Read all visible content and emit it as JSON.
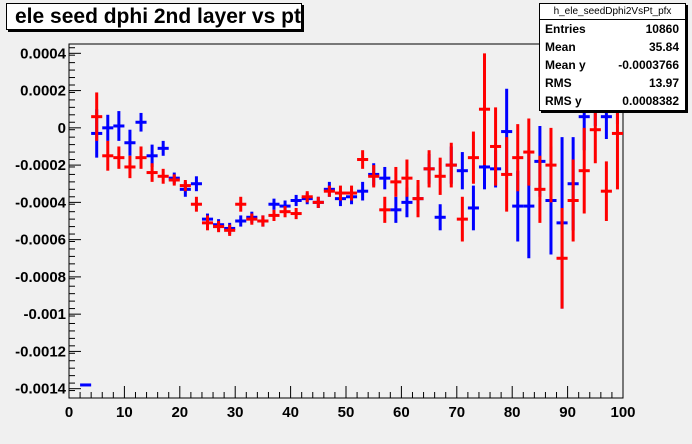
{
  "title": "ele seed dphi 2nd layer vs pt",
  "stats": {
    "name": "h_ele_seedDphi2VsPt_pfx",
    "rows": [
      {
        "key": "Entries",
        "value": "10860"
      },
      {
        "key": "Mean",
        "value": "35.84"
      },
      {
        "key": "Mean y",
        "value": "-0.0003766"
      },
      {
        "key": "RMS",
        "value": "13.97"
      },
      {
        "key": "RMS y",
        "value": "0.0008382"
      }
    ]
  },
  "colors": {
    "background": "#f0f0f0",
    "frame": "#000000",
    "blue_series": "#0000ff",
    "red_series": "#ff0000"
  },
  "chart_data": {
    "type": "scatter",
    "title": "ele seed dphi 2nd layer vs pt",
    "xlabel": "",
    "ylabel": "",
    "xlim": [
      0,
      100
    ],
    "ylim": [
      -0.00145,
      0.00045
    ],
    "xticks": [
      0,
      10,
      20,
      30,
      40,
      50,
      60,
      70,
      80,
      90,
      100
    ],
    "yticks": [
      0.0004,
      0.0002,
      0,
      -0.0002,
      -0.0004,
      -0.0006,
      -0.0008,
      -0.001,
      -0.0012,
      -0.0014
    ],
    "ytick_labels": [
      "0.0004",
      "0.0002",
      "0",
      "-0.0002",
      "-0.0004",
      "-0.0006",
      "-0.0008",
      "-0.001",
      "-0.0012",
      "-0.0014"
    ],
    "grid": false,
    "series": [
      {
        "color": "#0000ff",
        "bin_width": 2,
        "points": [
          {
            "x": 3,
            "y": -0.00138,
            "err": 0
          },
          {
            "x": 5,
            "y": -3e-05,
            "err": 0.00013
          },
          {
            "x": 7,
            "y": 0.0,
            "err": 7e-05
          },
          {
            "x": 9,
            "y": 1e-05,
            "err": 8e-05
          },
          {
            "x": 11,
            "y": -8e-05,
            "err": 7e-05
          },
          {
            "x": 13,
            "y": 3e-05,
            "err": 5e-05
          },
          {
            "x": 15,
            "y": -0.00015,
            "err": 6e-05
          },
          {
            "x": 17,
            "y": -0.00011,
            "err": 4e-05
          },
          {
            "x": 19,
            "y": -0.00027,
            "err": 3e-05
          },
          {
            "x": 21,
            "y": -0.00033,
            "err": 4e-05
          },
          {
            "x": 23,
            "y": -0.0003,
            "err": 4e-05
          },
          {
            "x": 25,
            "y": -0.00049,
            "err": 3e-05
          },
          {
            "x": 27,
            "y": -0.00052,
            "err": 3e-05
          },
          {
            "x": 29,
            "y": -0.00054,
            "err": 3e-05
          },
          {
            "x": 31,
            "y": -0.0005,
            "err": 3e-05
          },
          {
            "x": 33,
            "y": -0.00048,
            "err": 3e-05
          },
          {
            "x": 35,
            "y": -0.0005,
            "err": 3e-05
          },
          {
            "x": 37,
            "y": -0.00041,
            "err": 3e-05
          },
          {
            "x": 39,
            "y": -0.00042,
            "err": 3e-05
          },
          {
            "x": 41,
            "y": -0.00039,
            "err": 3e-05
          },
          {
            "x": 43,
            "y": -0.00038,
            "err": 3e-05
          },
          {
            "x": 45,
            "y": -0.0004,
            "err": 3e-05
          },
          {
            "x": 47,
            "y": -0.00033,
            "err": 4e-05
          },
          {
            "x": 49,
            "y": -0.00038,
            "err": 4e-05
          },
          {
            "x": 51,
            "y": -0.00037,
            "err": 4e-05
          },
          {
            "x": 53,
            "y": -0.00034,
            "err": 5e-05
          },
          {
            "x": 55,
            "y": -0.00025,
            "err": 6e-05
          },
          {
            "x": 57,
            "y": -0.00027,
            "err": 6e-05
          },
          {
            "x": 59,
            "y": -0.00044,
            "err": 7e-05
          },
          {
            "x": 61,
            "y": -0.0004,
            "err": 8e-05
          },
          {
            "x": 63,
            "y": -0.00038,
            "err": 7e-05
          },
          {
            "x": 65,
            "y": -0.00022,
            "err": 8e-05
          },
          {
            "x": 67,
            "y": -0.00048,
            "err": 7e-05
          },
          {
            "x": 69,
            "y": -0.0002,
            "err": 0.0001
          },
          {
            "x": 71,
            "y": -0.00023,
            "err": 0.0001
          },
          {
            "x": 73,
            "y": -0.00043,
            "err": 0.00012
          },
          {
            "x": 75,
            "y": -0.00021,
            "err": 0.00012
          },
          {
            "x": 77,
            "y": -0.00022,
            "err": 0.0001
          },
          {
            "x": 79,
            "y": -2e-05,
            "err": 0.00023
          },
          {
            "x": 81,
            "y": -0.00042,
            "err": 0.00019
          },
          {
            "x": 83,
            "y": -0.00042,
            "err": 0.00028
          },
          {
            "x": 85,
            "y": -0.00018,
            "err": 0.00019
          },
          {
            "x": 87,
            "y": -0.00039,
            "err": 0.00029
          },
          {
            "x": 89,
            "y": -0.00051,
            "err": 0.00046
          },
          {
            "x": 91,
            "y": -0.0003,
            "err": 0.00025
          },
          {
            "x": 93,
            "y": 6e-05,
            "err": 0.00018
          },
          {
            "x": 95,
            "y": 0.0001,
            "err": 9e-05
          },
          {
            "x": 97,
            "y": 6e-05,
            "err": 0.00012
          },
          {
            "x": 99,
            "y": 0.00022,
            "err": 0.0002
          }
        ]
      },
      {
        "color": "#ff0000",
        "bin_width": 2,
        "points": [
          {
            "x": 5,
            "y": 6e-05,
            "err": 0.00013
          },
          {
            "x": 7,
            "y": -0.00015,
            "err": 8e-05
          },
          {
            "x": 9,
            "y": -0.00016,
            "err": 6e-05
          },
          {
            "x": 11,
            "y": -0.00021,
            "err": 6e-05
          },
          {
            "x": 13,
            "y": -0.00016,
            "err": 6e-05
          },
          {
            "x": 15,
            "y": -0.00024,
            "err": 5e-05
          },
          {
            "x": 17,
            "y": -0.00026,
            "err": 4e-05
          },
          {
            "x": 19,
            "y": -0.00028,
            "err": 3e-05
          },
          {
            "x": 21,
            "y": -0.00031,
            "err": 3e-05
          },
          {
            "x": 23,
            "y": -0.00041,
            "err": 4e-05
          },
          {
            "x": 25,
            "y": -0.00051,
            "err": 4e-05
          },
          {
            "x": 27,
            "y": -0.00053,
            "err": 3e-05
          },
          {
            "x": 29,
            "y": -0.00055,
            "err": 3e-05
          },
          {
            "x": 31,
            "y": -0.00041,
            "err": 4e-05
          },
          {
            "x": 33,
            "y": -0.00049,
            "err": 3e-05
          },
          {
            "x": 35,
            "y": -0.0005,
            "err": 3e-05
          },
          {
            "x": 37,
            "y": -0.00047,
            "err": 3e-05
          },
          {
            "x": 39,
            "y": -0.00045,
            "err": 3e-05
          },
          {
            "x": 41,
            "y": -0.00046,
            "err": 3e-05
          },
          {
            "x": 43,
            "y": -0.00037,
            "err": 3e-05
          },
          {
            "x": 45,
            "y": -0.0004,
            "err": 3e-05
          },
          {
            "x": 47,
            "y": -0.00034,
            "err": 3e-05
          },
          {
            "x": 49,
            "y": -0.00035,
            "err": 4e-05
          },
          {
            "x": 51,
            "y": -0.00035,
            "err": 4e-05
          },
          {
            "x": 53,
            "y": -0.00017,
            "err": 5e-05
          },
          {
            "x": 55,
            "y": -0.00026,
            "err": 6e-05
          },
          {
            "x": 57,
            "y": -0.00044,
            "err": 7e-05
          },
          {
            "x": 59,
            "y": -0.00029,
            "err": 8e-05
          },
          {
            "x": 61,
            "y": -0.00027,
            "err": 0.0001
          },
          {
            "x": 63,
            "y": -0.00038,
            "err": 0.0001
          },
          {
            "x": 65,
            "y": -0.00022,
            "err": 0.0001
          },
          {
            "x": 67,
            "y": -0.00026,
            "err": 0.0001
          },
          {
            "x": 69,
            "y": -0.0002,
            "err": 0.00012
          },
          {
            "x": 71,
            "y": -0.00049,
            "err": 0.00012
          },
          {
            "x": 73,
            "y": -0.00016,
            "err": 0.00014
          },
          {
            "x": 75,
            "y": 0.0001,
            "err": 0.0003
          },
          {
            "x": 77,
            "y": -0.0001,
            "err": 0.00021
          },
          {
            "x": 79,
            "y": -0.00025,
            "err": 0.0002
          },
          {
            "x": 81,
            "y": -0.00016,
            "err": 0.00018
          },
          {
            "x": 83,
            "y": -0.00013,
            "err": 0.00018
          },
          {
            "x": 85,
            "y": -0.00033,
            "err": 0.00018
          },
          {
            "x": 87,
            "y": -0.0002,
            "err": 0.0002
          },
          {
            "x": 89,
            "y": -0.0007,
            "err": 0.00027
          },
          {
            "x": 91,
            "y": -0.00039,
            "err": 0.00022
          },
          {
            "x": 93,
            "y": -0.00023,
            "err": 0.00023
          },
          {
            "x": 95,
            "y": -1e-05,
            "err": 0.00018
          },
          {
            "x": 97,
            "y": -0.00034,
            "err": 0.00016
          },
          {
            "x": 99,
            "y": -3e-05,
            "err": 0.0003
          }
        ]
      }
    ]
  }
}
